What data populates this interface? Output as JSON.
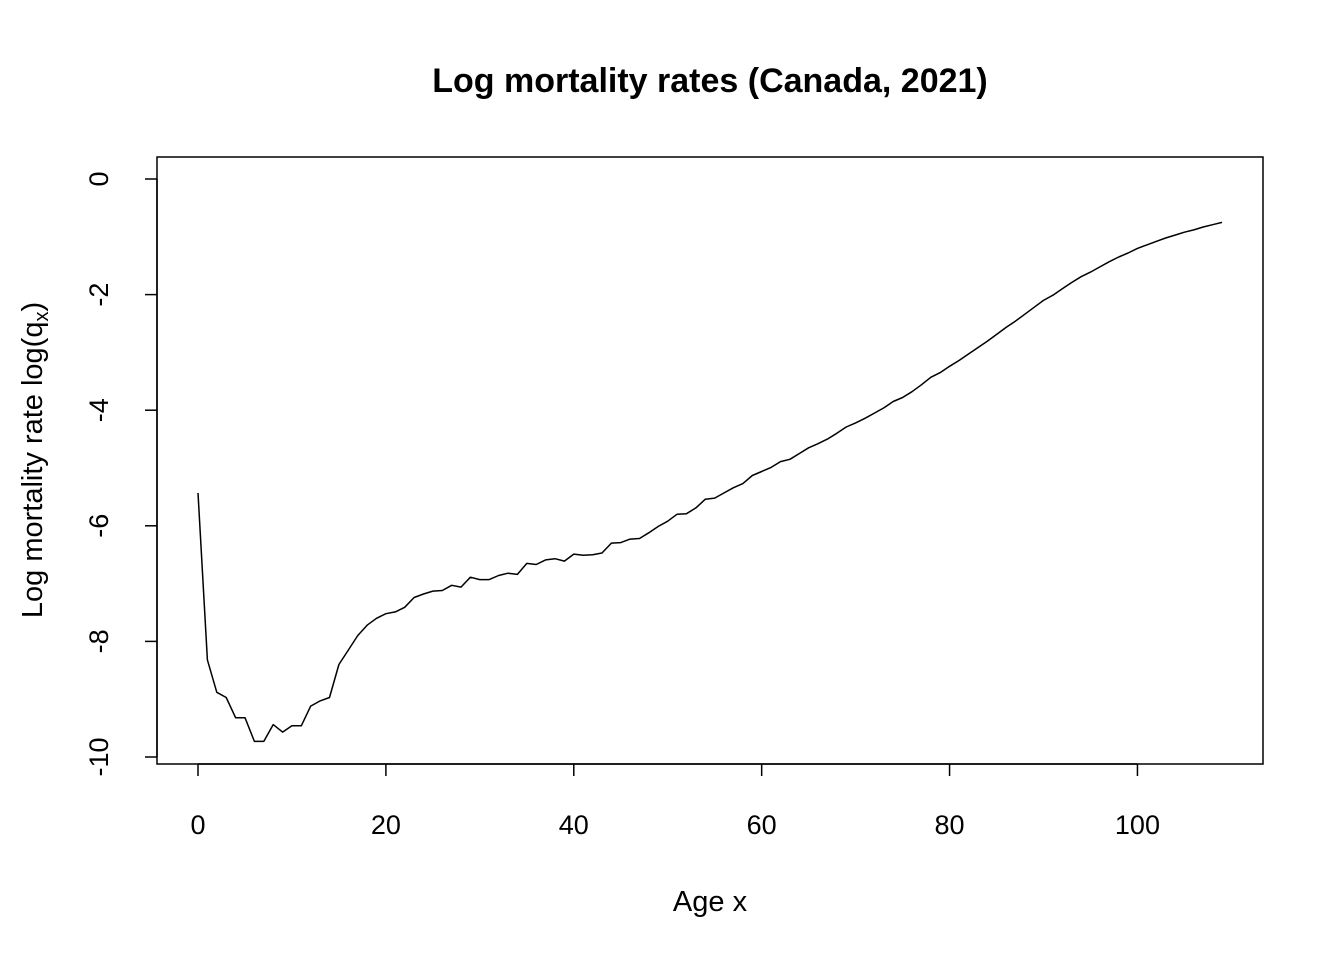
{
  "chart_data": {
    "type": "line",
    "title": "Log mortality rates (Canada, 2021)",
    "xlabel": "Age x",
    "ylabel_prefix": "Log mortality rate log(q",
    "ylabel_subscript": "x",
    "ylabel_suffix": ")",
    "xlim": [
      0,
      109
    ],
    "ylim": [
      -10,
      0
    ],
    "x_ticks": [
      0,
      20,
      40,
      60,
      80,
      100
    ],
    "x_tick_labels": [
      "0",
      "20",
      "40",
      "60",
      "80",
      "100"
    ],
    "y_ticks": [
      -10,
      -8,
      -6,
      -4,
      -2,
      0
    ],
    "y_tick_labels": [
      "-10",
      "-8",
      "-6",
      "-4",
      "-2",
      "0"
    ],
    "grid": false,
    "series": [
      {
        "color": "#000000",
        "x": [
          0,
          1,
          2,
          3,
          4,
          5,
          6,
          7,
          8,
          9,
          10,
          11,
          12,
          13,
          14,
          15,
          16,
          17,
          18,
          19,
          20,
          21,
          22,
          23,
          24,
          25,
          26,
          27,
          28,
          29,
          30,
          31,
          32,
          33,
          34,
          35,
          36,
          37,
          38,
          39,
          40,
          41,
          42,
          43,
          44,
          45,
          46,
          47,
          48,
          49,
          50,
          51,
          52,
          53,
          54,
          55,
          56,
          57,
          58,
          59,
          60,
          61,
          62,
          63,
          64,
          65,
          66,
          67,
          68,
          69,
          70,
          71,
          72,
          73,
          74,
          75,
          76,
          77,
          78,
          79,
          80,
          81,
          82,
          83,
          84,
          85,
          86,
          87,
          88,
          89,
          90,
          91,
          92,
          93,
          94,
          95,
          96,
          97,
          98,
          99,
          100,
          101,
          102,
          103,
          104,
          105,
          106,
          107,
          108,
          109
        ],
        "values": [
          -5.43,
          -8.32,
          -8.88,
          -8.97,
          -9.32,
          -9.32,
          -9.73,
          -9.73,
          -9.44,
          -9.57,
          -9.46,
          -9.46,
          -9.12,
          -9.03,
          -8.97,
          -8.4,
          -8.15,
          -7.9,
          -7.72,
          -7.6,
          -7.52,
          -7.49,
          -7.41,
          -7.24,
          -7.18,
          -7.13,
          -7.12,
          -7.03,
          -7.06,
          -6.89,
          -6.93,
          -6.93,
          -6.86,
          -6.82,
          -6.84,
          -6.65,
          -6.67,
          -6.59,
          -6.57,
          -6.61,
          -6.49,
          -6.51,
          -6.5,
          -6.47,
          -6.3,
          -6.29,
          -6.23,
          -6.22,
          -6.12,
          -6.01,
          -5.92,
          -5.8,
          -5.79,
          -5.69,
          -5.54,
          -5.52,
          -5.43,
          -5.34,
          -5.27,
          -5.13,
          -5.06,
          -4.99,
          -4.89,
          -4.85,
          -4.75,
          -4.65,
          -4.58,
          -4.5,
          -4.4,
          -4.29,
          -4.22,
          -4.14,
          -4.05,
          -3.96,
          -3.85,
          -3.78,
          -3.68,
          -3.56,
          -3.43,
          -3.35,
          -3.24,
          -3.14,
          -3.03,
          -2.92,
          -2.81,
          -2.69,
          -2.57,
          -2.46,
          -2.34,
          -2.22,
          -2.1,
          -2.01,
          -1.9,
          -1.79,
          -1.69,
          -1.61,
          -1.52,
          -1.43,
          -1.35,
          -1.28,
          -1.2,
          -1.14,
          -1.08,
          -1.02,
          -0.97,
          -0.92,
          -0.88,
          -0.83,
          -0.79,
          -0.75
        ]
      }
    ]
  }
}
